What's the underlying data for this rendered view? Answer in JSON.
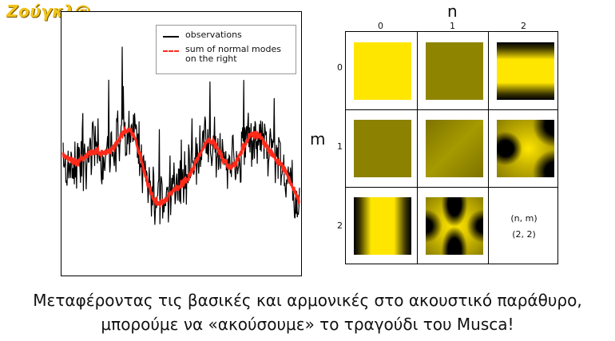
{
  "logo": {
    "text": "Ζούγκλ@"
  },
  "legend": {
    "items": [
      {
        "label": "observations",
        "color": "#000000"
      },
      {
        "label": "sum of normal modes on the right",
        "color": "#ff2a1a"
      }
    ]
  },
  "modes_grid": {
    "n_axis_label": "n",
    "m_axis_label": "m",
    "n_ticks": [
      "0",
      "1",
      "2"
    ],
    "m_ticks": [
      "0",
      "1",
      "2"
    ],
    "empty_cell_lines": [
      "(n, m)",
      "(2, 2)"
    ],
    "tile_colors": {
      "bright": "#ffe600",
      "dark": "#000000",
      "mid": "#8a7e00"
    }
  },
  "caption": {
    "line1": "Μεταφέροντας τις βασικές και αρμονικές στο ακουστικό παράθυρο,",
    "line2": "μπορούμε να «ακούσουμε» το τραγούδι του Musca!"
  }
}
